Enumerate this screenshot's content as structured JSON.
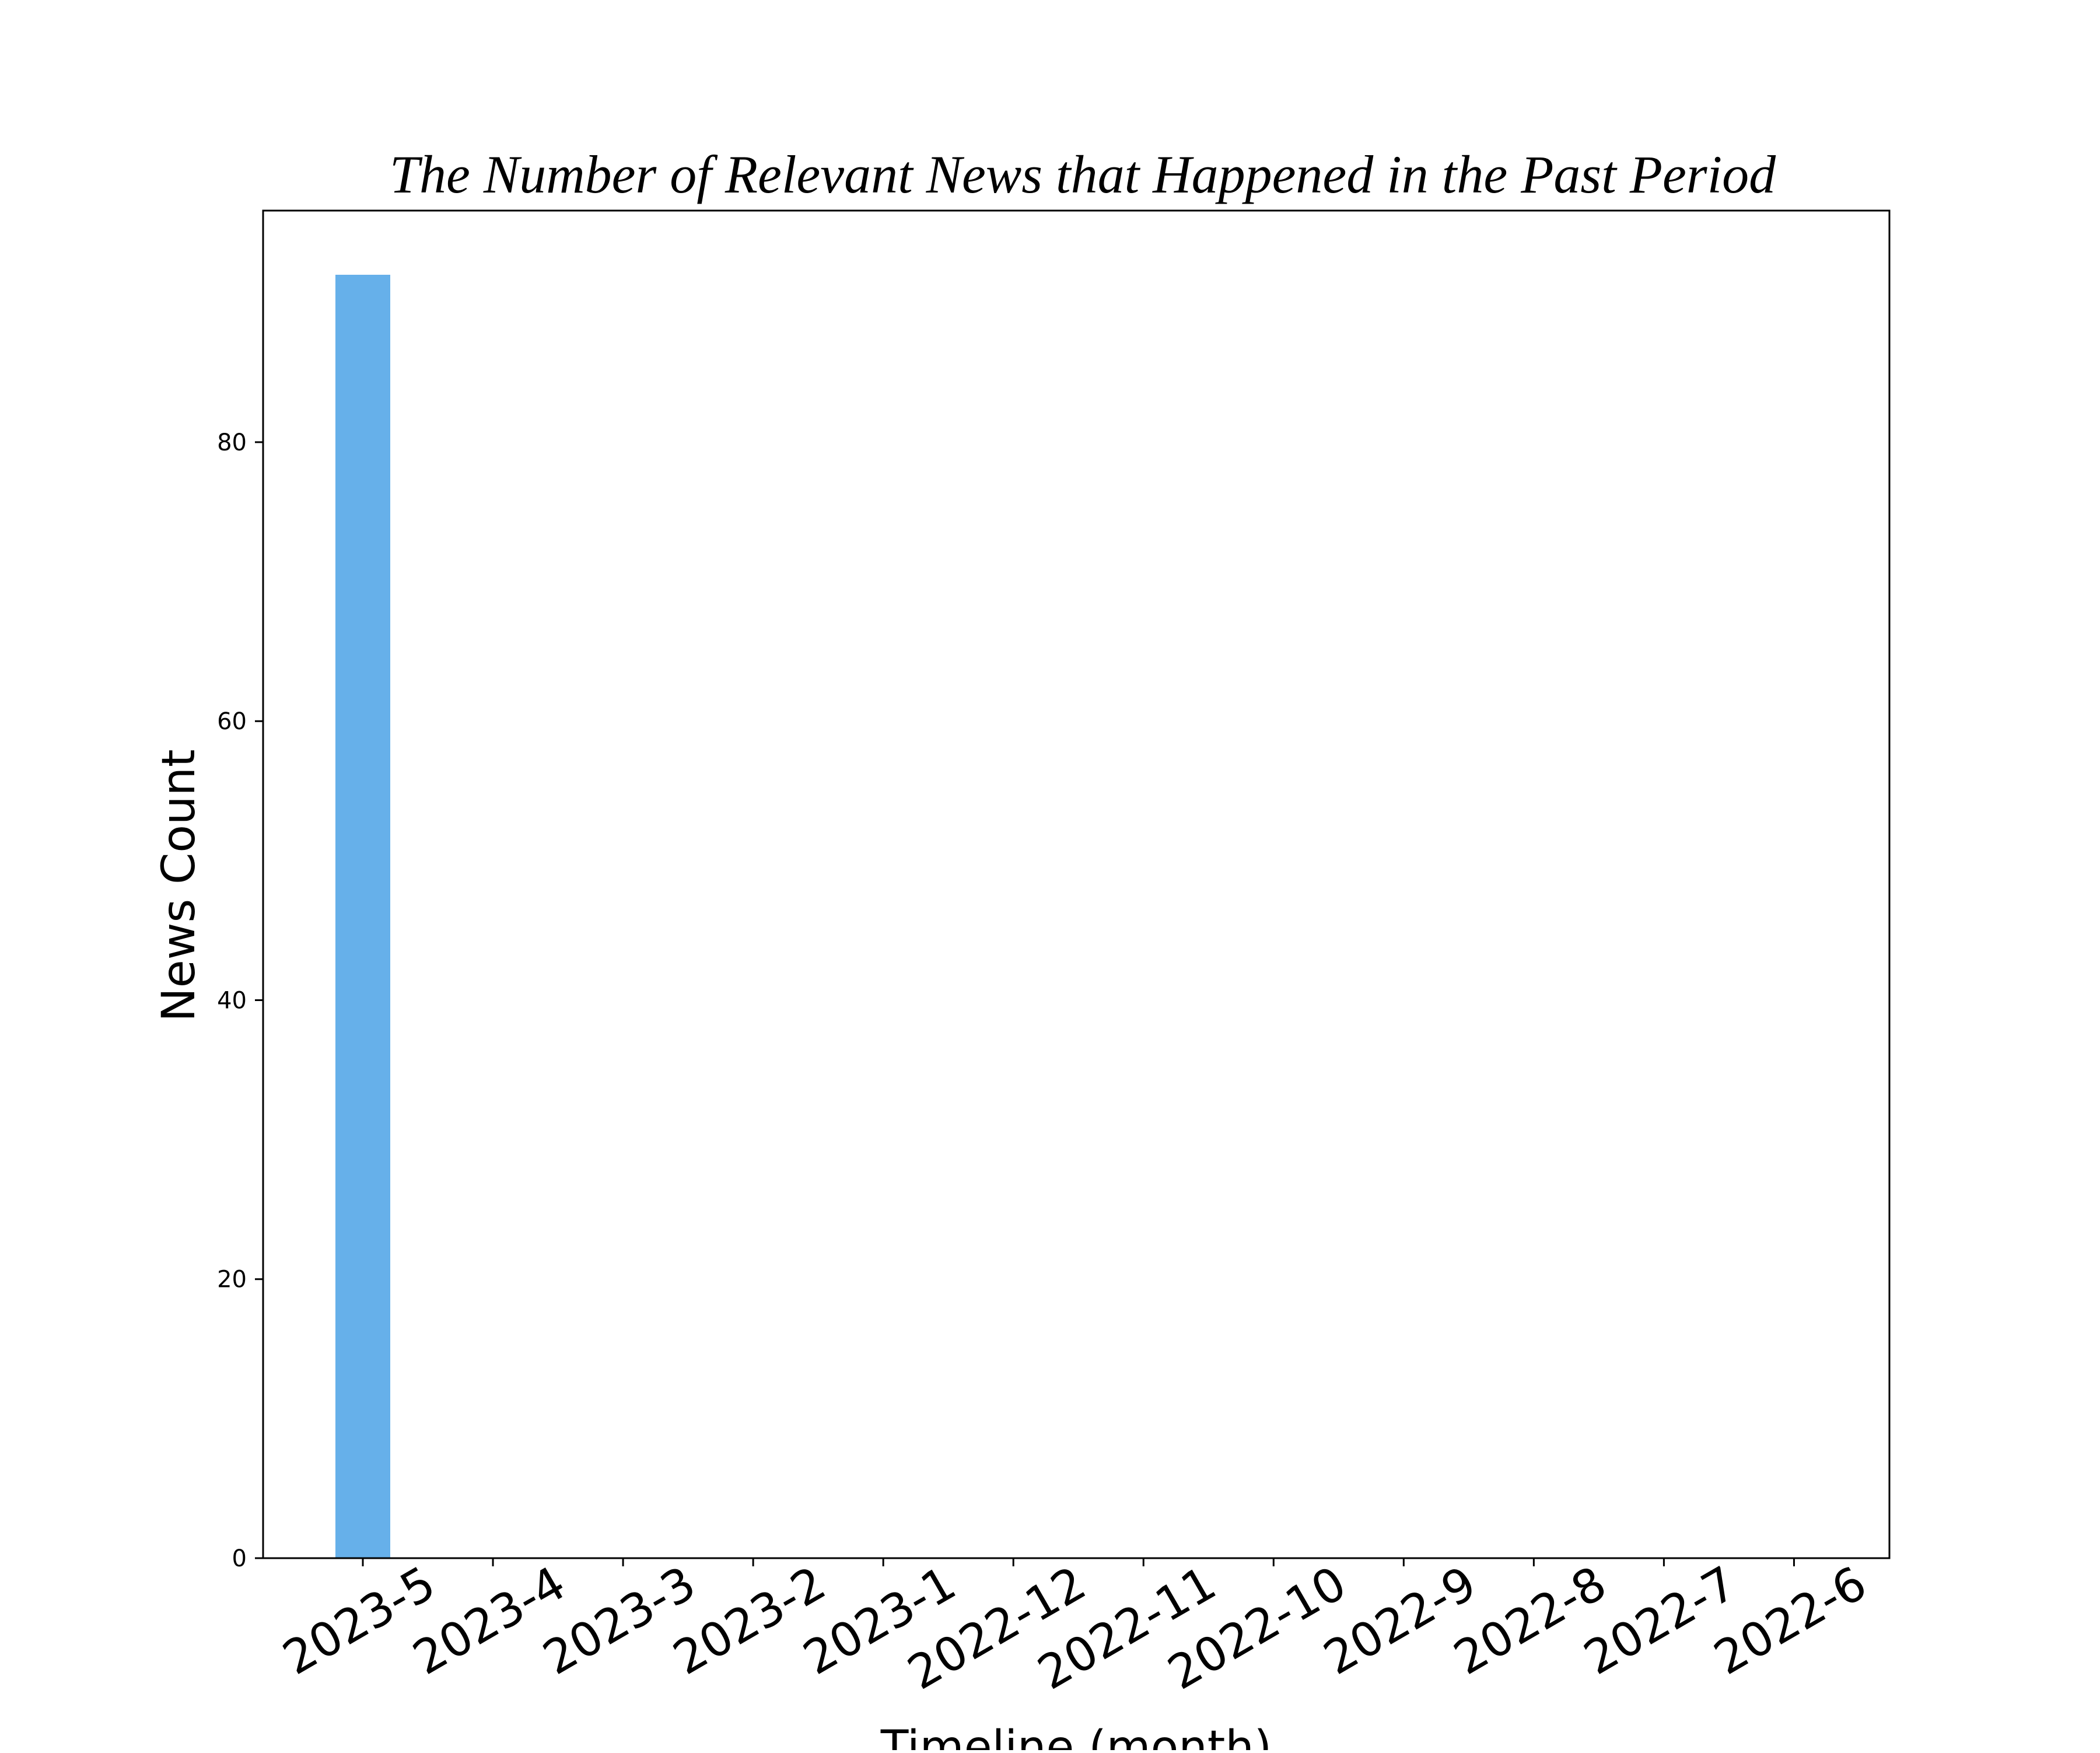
{
  "chart_data": {
    "type": "bar",
    "title": "The Number of Relevant News that Happened in the Past Period",
    "xlabel": "Timeline (month)",
    "ylabel": "News Count",
    "categories": [
      "2023-5",
      "2023-4",
      "2023-3",
      "2023-2",
      "2023-1",
      "2022-12",
      "2022-11",
      "2022-10",
      "2022-9",
      "2022-8",
      "2022-7",
      "2022-6"
    ],
    "values": [
      92,
      0,
      0,
      0,
      0,
      0,
      0,
      0,
      0,
      0,
      0,
      0
    ],
    "ylim": [
      0,
      96.6
    ],
    "yticks": [
      0,
      20,
      40,
      60,
      80
    ],
    "bar_color": "#66b0ea",
    "grid": false,
    "legend": "none"
  }
}
